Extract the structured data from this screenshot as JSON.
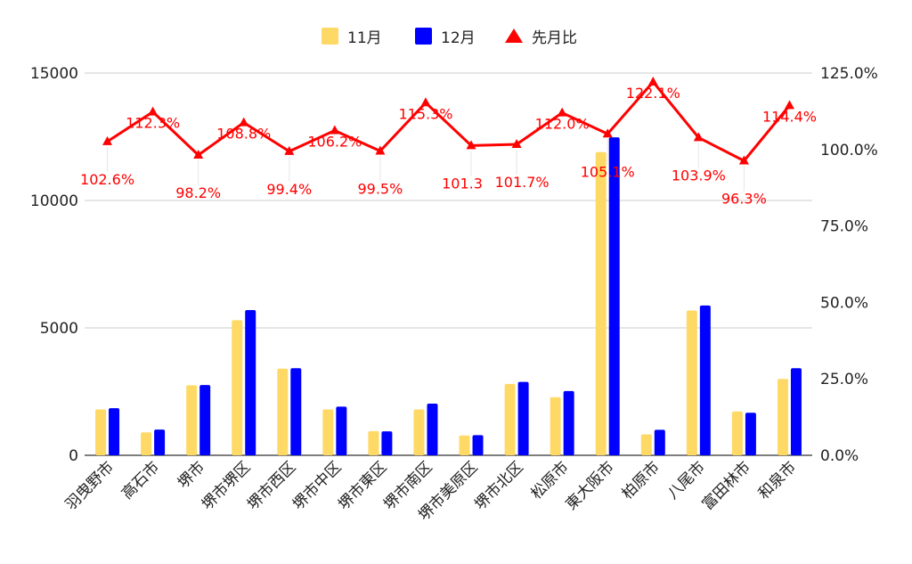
{
  "chart_data": {
    "type": "bar",
    "categories": [
      "羽曳野市",
      "高石市",
      "堺市",
      "堺市堺区",
      "堺市西区",
      "堺市中区",
      "堺市東区",
      "堺市南区",
      "堺市美原区",
      "堺市北区",
      "松原市",
      "東大阪市",
      "柏原市",
      "八尾市",
      "富田林市",
      "和泉市"
    ],
    "series": [
      {
        "name": "11月",
        "type": "bar",
        "axis": "left",
        "color": "#ffd966",
        "values": [
          1800,
          900,
          2750,
          5300,
          3400,
          1800,
          950,
          1800,
          780,
          2800,
          2280,
          11900,
          820,
          5680,
          1720,
          3000
        ]
      },
      {
        "name": "12月",
        "type": "bar",
        "axis": "left",
        "color": "#0000ff",
        "values": [
          1850,
          1010,
          2760,
          5700,
          3420,
          1910,
          940,
          2030,
          790,
          2880,
          2520,
          12480,
          1000,
          5880,
          1670,
          3420
        ]
      },
      {
        "name": "先月比",
        "type": "line",
        "axis": "right",
        "color": "#ff0000",
        "marker": "triangle",
        "values": [
          102.6,
          112.3,
          98.2,
          108.8,
          99.4,
          106.2,
          99.5,
          115.3,
          101.3,
          101.7,
          112.0,
          105.1,
          122.1,
          103.9,
          96.3,
          114.4
        ],
        "labels": [
          "102.6%",
          "112.3%",
          "98.2%",
          "108.8%",
          "99.4%",
          "106.2%",
          "99.5%",
          "115.3%",
          "101.3",
          "101.7%",
          "112.0%",
          "105.1%",
          "122.1%",
          "103.9%",
          "96.3%",
          "114.4%"
        ]
      }
    ],
    "y_left": {
      "range": [
        0,
        15000
      ],
      "ticks": [
        "0",
        "5000",
        "10000",
        "15000"
      ]
    },
    "y_right": {
      "range": [
        0,
        125
      ],
      "ticks": [
        "0.0%",
        "25.0%",
        "50.0%",
        "75.0%",
        "100.0%",
        "125.0%"
      ]
    },
    "grid": true,
    "legend": "top-center"
  }
}
